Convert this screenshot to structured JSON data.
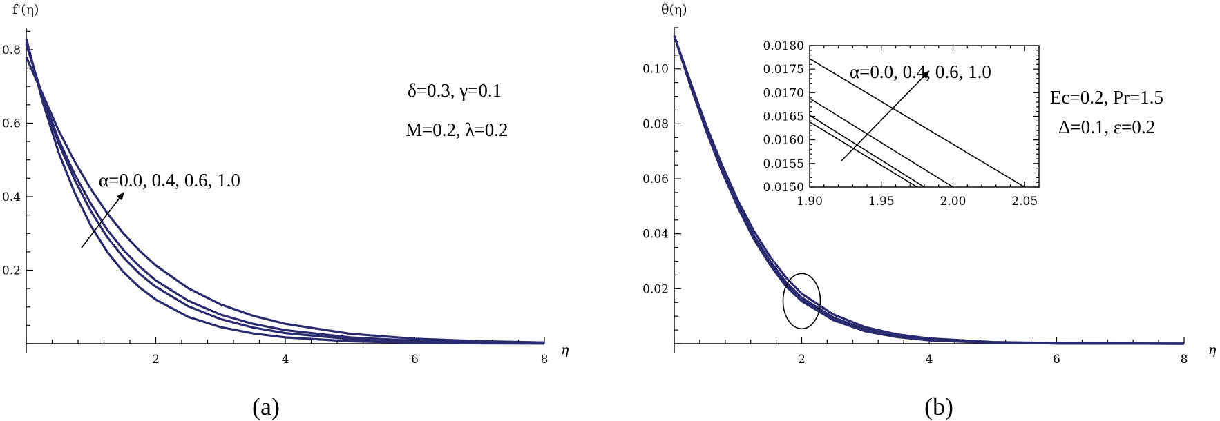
{
  "chart_data": [
    {
      "type": "line",
      "panel_caption": "(a)",
      "ylabel": "f'(η)",
      "xlabel": "η",
      "xlim": [
        0,
        8
      ],
      "ylim": [
        0,
        0.86
      ],
      "x_ticks": [
        "2",
        "4",
        "6",
        "8"
      ],
      "y_ticks": [
        "0.2",
        "0.4",
        "0.6",
        "0.8"
      ],
      "annotations": [
        "δ=0.3, γ=0.1",
        "M=0.2, λ=0.2",
        "α=0.0, 0.4, 0.6, 1.0"
      ],
      "series": [
        {
          "values": [
            [
              0,
              0.83
            ],
            [
              0.25,
              0.66
            ],
            [
              0.5,
              0.52
            ],
            [
              0.75,
              0.41
            ],
            [
              1.0,
              0.32
            ],
            [
              1.25,
              0.25
            ],
            [
              1.5,
              0.195
            ],
            [
              1.75,
              0.153
            ],
            [
              2.0,
              0.12
            ],
            [
              2.5,
              0.073
            ],
            [
              3.0,
              0.045
            ],
            [
              3.5,
              0.028
            ],
            [
              4.0,
              0.017
            ],
            [
              5.0,
              0.0065
            ],
            [
              6.0,
              0.0025
            ],
            [
              7.0,
              0.001
            ],
            [
              8.0,
              0.0004
            ]
          ]
        },
        {
          "values": [
            [
              0,
              0.82
            ],
            [
              0.25,
              0.67
            ],
            [
              0.5,
              0.545
            ],
            [
              0.75,
              0.445
            ],
            [
              1.0,
              0.36
            ],
            [
              1.25,
              0.29
            ],
            [
              1.5,
              0.235
            ],
            [
              1.75,
              0.19
            ],
            [
              2.0,
              0.155
            ],
            [
              2.5,
              0.102
            ],
            [
              3.0,
              0.067
            ],
            [
              3.5,
              0.044
            ],
            [
              4.0,
              0.029
            ],
            [
              5.0,
              0.0125
            ],
            [
              6.0,
              0.0055
            ],
            [
              7.0,
              0.0024
            ],
            [
              8.0,
              0.001
            ]
          ]
        },
        {
          "values": [
            [
              0,
              0.815
            ],
            [
              0.25,
              0.675
            ],
            [
              0.5,
              0.555
            ],
            [
              0.75,
              0.46
            ],
            [
              1.0,
              0.38
            ],
            [
              1.25,
              0.31
            ],
            [
              1.5,
              0.255
            ],
            [
              1.75,
              0.21
            ],
            [
              2.0,
              0.172
            ],
            [
              2.5,
              0.117
            ],
            [
              3.0,
              0.079
            ],
            [
              3.5,
              0.054
            ],
            [
              4.0,
              0.037
            ],
            [
              5.0,
              0.017
            ],
            [
              6.0,
              0.008
            ],
            [
              7.0,
              0.0037
            ],
            [
              8.0,
              0.0017
            ]
          ]
        },
        {
          "values": [
            [
              0,
              0.78
            ],
            [
              0.25,
              0.68
            ],
            [
              0.5,
              0.58
            ],
            [
              0.75,
              0.495
            ],
            [
              1.0,
              0.42
            ],
            [
              1.25,
              0.355
            ],
            [
              1.5,
              0.3
            ],
            [
              1.75,
              0.253
            ],
            [
              2.0,
              0.213
            ],
            [
              2.5,
              0.151
            ],
            [
              3.0,
              0.107
            ],
            [
              3.5,
              0.076
            ],
            [
              4.0,
              0.054
            ],
            [
              5.0,
              0.027
            ],
            [
              6.0,
              0.0135
            ],
            [
              7.0,
              0.0067
            ],
            [
              8.0,
              0.0034
            ]
          ]
        }
      ],
      "arrow": {
        "from": [
          0.85,
          0.26
        ],
        "to": [
          1.5,
          0.41
        ]
      }
    },
    {
      "type": "line",
      "panel_caption": "(b)",
      "ylabel": "θ(η)",
      "xlabel": "η",
      "xlim": [
        0,
        8
      ],
      "ylim": [
        0,
        0.115
      ],
      "x_ticks": [
        "2",
        "4",
        "6",
        "8"
      ],
      "y_ticks": [
        "0.02",
        "0.04",
        "0.06",
        "0.08",
        "0.10"
      ],
      "annotations": [
        "Ec=0.2, Pr=1.5",
        "Δ=0.1, ε=0.2"
      ],
      "series": [
        {
          "values": [
            [
              0,
              0.112
            ],
            [
              0.25,
              0.094
            ],
            [
              0.5,
              0.0775
            ],
            [
              0.75,
              0.0625
            ],
            [
              1.0,
              0.0495
            ],
            [
              1.25,
              0.038
            ],
            [
              1.5,
              0.0288
            ],
            [
              1.75,
              0.021
            ],
            [
              2.0,
              0.0155
            ],
            [
              2.5,
              0.0085
            ],
            [
              3.0,
              0.0045
            ],
            [
              3.5,
              0.0024
            ],
            [
              4.0,
              0.0012
            ],
            [
              5.0,
              0.0003
            ],
            [
              6.0,
              0.0001
            ],
            [
              8.0,
              0.0
            ]
          ]
        },
        {
          "values": [
            [
              0,
              0.112
            ],
            [
              0.25,
              0.0945
            ],
            [
              0.5,
              0.078
            ],
            [
              0.75,
              0.063
            ],
            [
              1.0,
              0.05
            ],
            [
              1.25,
              0.0387
            ],
            [
              1.5,
              0.0295
            ],
            [
              1.75,
              0.0217
            ],
            [
              2.0,
              0.016
            ],
            [
              2.5,
              0.0089
            ],
            [
              3.0,
              0.0048
            ],
            [
              3.5,
              0.0026
            ],
            [
              4.0,
              0.0014
            ],
            [
              5.0,
              0.0004
            ],
            [
              6.0,
              0.0001
            ],
            [
              8.0,
              0.0
            ]
          ]
        },
        {
          "values": [
            [
              0,
              0.112
            ],
            [
              0.25,
              0.095
            ],
            [
              0.5,
              0.0785
            ],
            [
              0.75,
              0.0635
            ],
            [
              1.0,
              0.0505
            ],
            [
              1.25,
              0.0393
            ],
            [
              1.5,
              0.0302
            ],
            [
              1.75,
              0.0225
            ],
            [
              2.0,
              0.0168
            ],
            [
              2.5,
              0.0095
            ],
            [
              3.0,
              0.0052
            ],
            [
              3.5,
              0.0029
            ],
            [
              4.0,
              0.0016
            ],
            [
              5.0,
              0.0005
            ],
            [
              6.0,
              0.0001
            ],
            [
              8.0,
              0.0
            ]
          ]
        },
        {
          "values": [
            [
              0,
              0.112
            ],
            [
              0.25,
              0.0955
            ],
            [
              0.5,
              0.0795
            ],
            [
              0.75,
              0.065
            ],
            [
              1.0,
              0.052
            ],
            [
              1.25,
              0.041
            ],
            [
              1.5,
              0.0318
            ],
            [
              1.75,
              0.0242
            ],
            [
              2.0,
              0.0182
            ],
            [
              2.5,
              0.0106
            ],
            [
              3.0,
              0.006
            ],
            [
              3.5,
              0.0034
            ],
            [
              4.0,
              0.0019
            ],
            [
              5.0,
              0.0006
            ],
            [
              6.0,
              0.0002
            ],
            [
              8.0,
              0.0
            ]
          ]
        }
      ],
      "highlight_ellipse": {
        "center": [
          2.0,
          0.016
        ]
      },
      "inset": {
        "xlim": [
          1.9,
          2.06
        ],
        "ylim": [
          0.015,
          0.018
        ],
        "x_ticks": [
          "1.90",
          "1.95",
          "2.00",
          "2.05"
        ],
        "y_ticks": [
          "0.0150",
          "0.0155",
          "0.0160",
          "0.0165",
          "0.0170",
          "0.0175",
          "0.0180"
        ],
        "annotation": "α=0.0, 0.4, 0.6, 1.0",
        "series": [
          {
            "values": [
              [
                1.9,
                0.01638
              ],
              [
                1.975,
                0.015
              ]
            ]
          },
          {
            "values": [
              [
                1.9,
                0.01652
              ],
              [
                1.98,
                0.015
              ]
            ]
          },
          {
            "values": [
              [
                1.9,
                0.01688
              ],
              [
                2.0,
                0.015
              ]
            ]
          },
          {
            "values": [
              [
                1.9,
                0.01772
              ],
              [
                2.05,
                0.015
              ]
            ]
          }
        ],
        "arrow": {
          "from": [
            1.922,
            0.01555
          ],
          "to": [
            1.983,
            0.01745
          ]
        }
      }
    }
  ]
}
